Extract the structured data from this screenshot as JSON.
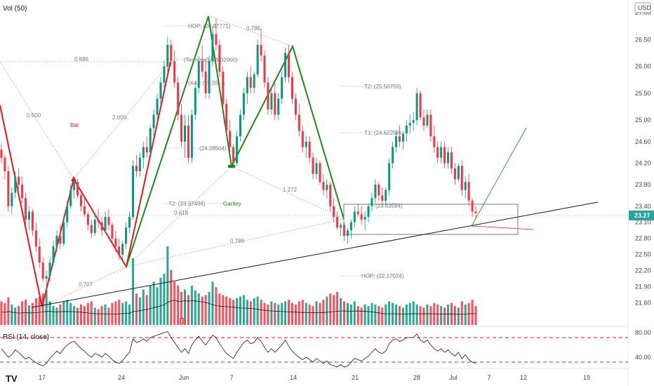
{
  "chart_data": {
    "type": "line",
    "indicators": {
      "volume": "Vol (50)",
      "rsi": "RSI (14, close)"
    },
    "currency": "USD",
    "last_price": "23.27",
    "x_ticks": [
      "17",
      "24",
      "Jun",
      "7",
      "14",
      "21",
      "28",
      "Jul",
      "7",
      "12",
      "19"
    ],
    "y_ticks": [
      "27.00",
      "26.50",
      "26.00",
      "25.50",
      "25.00",
      "24.60",
      "24.20",
      "23.80",
      "23.40",
      "23.10",
      "22.80",
      "22.50",
      "22.20",
      "21.90",
      "21.60"
    ],
    "rsi_ticks": [
      "80.00",
      "40.00"
    ],
    "ylim": [
      21.45,
      27.05
    ],
    "rsi_levels": {
      "upper": 70,
      "lower": 30
    },
    "candles": [
      [
        24.45,
        24.55,
        24.2,
        24.3
      ],
      [
        24.3,
        24.35,
        23.9,
        24.05
      ],
      [
        24.05,
        24.15,
        23.3,
        23.4
      ],
      [
        23.4,
        23.75,
        23.25,
        23.65
      ],
      [
        23.65,
        24.05,
        23.55,
        23.95
      ],
      [
        23.95,
        24.1,
        23.7,
        23.8
      ],
      [
        23.8,
        23.95,
        23.45,
        23.55
      ],
      [
        23.55,
        23.65,
        23.05,
        23.15
      ],
      [
        23.15,
        23.4,
        22.95,
        23.3
      ],
      [
        23.3,
        23.35,
        22.85,
        22.95
      ],
      [
        22.95,
        23.1,
        22.55,
        22.65
      ],
      [
        22.65,
        22.8,
        22.25,
        22.35
      ],
      [
        22.35,
        22.45,
        22.0,
        22.05
      ],
      [
        22.05,
        22.2,
        21.8,
        22.1
      ],
      [
        22.1,
        22.45,
        22.0,
        22.35
      ],
      [
        22.35,
        22.75,
        22.3,
        22.65
      ],
      [
        22.65,
        22.95,
        22.55,
        22.85
      ],
      [
        22.85,
        23.05,
        22.6,
        22.7
      ],
      [
        22.7,
        23.2,
        22.65,
        23.1
      ],
      [
        23.1,
        23.5,
        23.0,
        23.4
      ],
      [
        23.4,
        23.8,
        23.35,
        23.7
      ],
      [
        23.7,
        23.95,
        23.55,
        23.85
      ],
      [
        23.85,
        23.9,
        23.55,
        23.6
      ],
      [
        23.6,
        23.65,
        23.3,
        23.4
      ],
      [
        23.4,
        23.55,
        23.2,
        23.25
      ],
      [
        23.25,
        23.3,
        22.95,
        23.05
      ],
      [
        23.05,
        23.15,
        22.8,
        22.9
      ],
      [
        22.9,
        23.25,
        22.85,
        23.15
      ],
      [
        23.15,
        23.35,
        23.0,
        23.1
      ],
      [
        23.1,
        23.2,
        22.85,
        22.95
      ],
      [
        22.95,
        23.3,
        22.9,
        23.2
      ],
      [
        23.2,
        23.35,
        22.95,
        23.05
      ],
      [
        23.05,
        23.1,
        22.7,
        22.8
      ],
      [
        22.8,
        22.95,
        22.55,
        22.65
      ],
      [
        22.65,
        22.8,
        22.4,
        22.5
      ],
      [
        22.5,
        22.75,
        22.4,
        22.7
      ],
      [
        22.7,
        23.1,
        22.6,
        23.0
      ],
      [
        23.0,
        23.3,
        22.9,
        23.2
      ],
      [
        23.2,
        24.25,
        23.15,
        24.15
      ],
      [
        24.15,
        24.35,
        23.95,
        24.05
      ],
      [
        24.05,
        24.4,
        23.95,
        24.3
      ],
      [
        24.3,
        24.6,
        24.1,
        24.5
      ],
      [
        24.5,
        24.7,
        24.3,
        24.4
      ],
      [
        24.4,
        24.9,
        24.35,
        24.85
      ],
      [
        24.85,
        25.2,
        24.7,
        25.1
      ],
      [
        25.1,
        25.5,
        24.95,
        25.4
      ],
      [
        25.4,
        25.8,
        25.3,
        25.7
      ],
      [
        25.7,
        26.1,
        25.6,
        26.0
      ],
      [
        26.0,
        26.55,
        25.9,
        26.4
      ],
      [
        26.4,
        26.5,
        26.0,
        26.1
      ],
      [
        26.1,
        26.3,
        25.6,
        25.7
      ],
      [
        25.7,
        25.8,
        25.0,
        25.1
      ],
      [
        25.1,
        25.3,
        24.5,
        24.6
      ],
      [
        24.6,
        25.1,
        24.3,
        24.9
      ],
      [
        24.9,
        25.1,
        24.2,
        24.3
      ],
      [
        24.3,
        25.2,
        24.2,
        25.1
      ],
      [
        25.1,
        25.7,
        25.0,
        25.6
      ],
      [
        25.6,
        26.2,
        25.5,
        26.1
      ],
      [
        26.1,
        26.4,
        25.8,
        25.9
      ],
      [
        25.9,
        26.1,
        25.4,
        25.5
      ],
      [
        25.5,
        26.2,
        25.4,
        26.1
      ],
      [
        26.1,
        26.75,
        26.0,
        26.6
      ],
      [
        26.6,
        26.9,
        26.3,
        26.4
      ],
      [
        26.4,
        26.5,
        25.8,
        25.9
      ],
      [
        25.9,
        26.0,
        25.2,
        25.3
      ],
      [
        25.3,
        25.4,
        24.7,
        24.8
      ],
      [
        24.8,
        25.0,
        24.4,
        24.5
      ],
      [
        24.5,
        24.55,
        24.1,
        24.2
      ],
      [
        24.2,
        24.8,
        24.15,
        24.7
      ],
      [
        24.7,
        25.2,
        24.6,
        25.1
      ],
      [
        25.1,
        25.6,
        25.0,
        25.5
      ],
      [
        25.5,
        25.9,
        25.3,
        25.8
      ],
      [
        25.8,
        26.0,
        25.5,
        25.6
      ],
      [
        25.6,
        25.9,
        25.5,
        25.85
      ],
      [
        25.85,
        26.5,
        25.8,
        26.4
      ],
      [
        26.4,
        26.7,
        26.1,
        26.2
      ],
      [
        26.2,
        26.3,
        25.6,
        25.7
      ],
      [
        25.7,
        25.8,
        25.1,
        25.2
      ],
      [
        25.2,
        25.6,
        25.1,
        25.5
      ],
      [
        25.5,
        25.7,
        25.0,
        25.1
      ],
      [
        25.1,
        25.5,
        25.0,
        25.4
      ],
      [
        25.4,
        25.9,
        25.3,
        25.8
      ],
      [
        25.8,
        26.35,
        25.7,
        26.25
      ],
      [
        26.25,
        26.4,
        25.7,
        25.8
      ],
      [
        25.8,
        25.9,
        25.3,
        25.4
      ],
      [
        25.4,
        25.5,
        25.0,
        25.1
      ],
      [
        25.1,
        25.3,
        24.7,
        24.8
      ],
      [
        24.8,
        24.9,
        24.4,
        24.5
      ],
      [
        24.5,
        24.7,
        24.3,
        24.6
      ],
      [
        24.6,
        24.7,
        24.2,
        24.3
      ],
      [
        24.3,
        24.4,
        23.9,
        24.0
      ],
      [
        24.0,
        24.3,
        23.9,
        24.2
      ],
      [
        24.2,
        24.25,
        23.8,
        23.85
      ],
      [
        23.85,
        24.0,
        23.6,
        23.7
      ],
      [
        23.7,
        23.9,
        23.55,
        23.8
      ],
      [
        23.8,
        23.85,
        23.3,
        23.4
      ],
      [
        23.4,
        23.55,
        23.1,
        23.2
      ],
      [
        23.2,
        23.3,
        22.95,
        23.0
      ],
      [
        23.0,
        23.1,
        22.85,
        23.05
      ],
      [
        23.05,
        23.1,
        22.75,
        22.85
      ],
      [
        22.85,
        23.0,
        22.7,
        22.95
      ],
      [
        22.95,
        23.15,
        22.8,
        23.1
      ],
      [
        23.1,
        23.4,
        23.0,
        23.3
      ],
      [
        23.3,
        23.45,
        23.2,
        23.25
      ],
      [
        23.25,
        23.4,
        23.05,
        23.15
      ],
      [
        23.15,
        23.3,
        22.95,
        23.2
      ],
      [
        23.2,
        23.45,
        23.1,
        23.4
      ],
      [
        23.4,
        23.65,
        23.3,
        23.55
      ],
      [
        23.55,
        23.9,
        23.45,
        23.8
      ],
      [
        23.8,
        23.85,
        23.5,
        23.6
      ],
      [
        23.6,
        23.75,
        23.4,
        23.5
      ],
      [
        23.5,
        23.75,
        23.4,
        23.7
      ],
      [
        23.7,
        24.3,
        23.6,
        24.2
      ],
      [
        24.2,
        24.6,
        24.1,
        24.5
      ],
      [
        24.5,
        24.8,
        24.4,
        24.7
      ],
      [
        24.7,
        24.9,
        24.5,
        24.6
      ],
      [
        24.6,
        24.8,
        24.45,
        24.75
      ],
      [
        24.75,
        25.0,
        24.6,
        24.9
      ],
      [
        24.9,
        25.1,
        24.75,
        24.95
      ],
      [
        24.95,
        25.15,
        24.8,
        25.0
      ],
      [
        25.0,
        25.6,
        24.9,
        25.5
      ],
      [
        25.5,
        25.55,
        25.0,
        25.05
      ],
      [
        25.05,
        25.2,
        24.8,
        24.9
      ],
      [
        24.9,
        25.2,
        24.85,
        25.1
      ],
      [
        25.1,
        25.2,
        24.6,
        24.7
      ],
      [
        24.7,
        24.9,
        24.4,
        24.5
      ],
      [
        24.5,
        24.6,
        24.2,
        24.3
      ],
      [
        24.3,
        24.6,
        24.2,
        24.5
      ],
      [
        24.5,
        24.6,
        24.1,
        24.2
      ],
      [
        24.2,
        24.5,
        24.1,
        24.4
      ],
      [
        24.4,
        24.5,
        24.0,
        24.1
      ],
      [
        24.1,
        24.2,
        23.8,
        23.9
      ],
      [
        23.9,
        24.2,
        23.85,
        24.15
      ],
      [
        24.15,
        24.25,
        23.6,
        23.7
      ],
      [
        23.7,
        23.95,
        23.55,
        23.85
      ],
      [
        23.85,
        24.0,
        23.4,
        23.5
      ],
      [
        23.5,
        23.55,
        23.2,
        23.3
      ],
      [
        23.3,
        23.4,
        23.15,
        23.27
      ]
    ],
    "volume": [
      0.3,
      0.28,
      0.35,
      0.26,
      0.22,
      0.24,
      0.3,
      0.32,
      0.25,
      0.28,
      0.34,
      0.36,
      0.4,
      0.45,
      0.3,
      0.24,
      0.22,
      0.26,
      0.3,
      0.32,
      0.28,
      0.24,
      0.22,
      0.26,
      0.24,
      0.28,
      0.3,
      0.22,
      0.2,
      0.24,
      0.26,
      0.22,
      0.28,
      0.3,
      0.32,
      0.28,
      0.3,
      0.26,
      0.85,
      0.4,
      0.35,
      0.45,
      0.38,
      0.5,
      0.55,
      0.48,
      0.6,
      0.65,
      1.0,
      0.7,
      0.55,
      0.5,
      0.42,
      0.45,
      0.38,
      0.5,
      0.44,
      0.4,
      0.36,
      0.38,
      0.42,
      0.55,
      0.48,
      0.4,
      0.38,
      0.36,
      0.34,
      0.32,
      0.34,
      0.36,
      0.38,
      0.32,
      0.3,
      0.34,
      0.36,
      0.32,
      0.28,
      0.26,
      0.3,
      0.28,
      0.26,
      0.28,
      0.3,
      0.32,
      0.28,
      0.26,
      0.3,
      0.32,
      0.28,
      0.26,
      0.24,
      0.3,
      0.28,
      0.32,
      0.36,
      0.4,
      0.38,
      0.42,
      0.34,
      0.3,
      0.28,
      0.26,
      0.3,
      0.24,
      0.22,
      0.26,
      0.24,
      0.28,
      0.26,
      0.24,
      0.22,
      0.26,
      0.3,
      0.28,
      0.26,
      0.24,
      0.22,
      0.26,
      0.28,
      0.3,
      0.26,
      0.24,
      0.22,
      0.26,
      0.24,
      0.28,
      0.26,
      0.24,
      0.22,
      0.26,
      0.28,
      0.24,
      0.22,
      0.3,
      0.26,
      0.28,
      0.32,
      0.24
    ],
    "rsi": [
      52,
      45,
      38,
      42,
      50,
      46,
      40,
      35,
      38,
      33,
      29,
      26,
      24,
      28,
      36,
      42,
      48,
      44,
      52,
      58,
      62,
      64,
      58,
      52,
      48,
      42,
      38,
      44,
      42,
      38,
      44,
      40,
      34,
      30,
      28,
      32,
      40,
      46,
      68,
      62,
      64,
      68,
      64,
      70,
      72,
      74,
      76,
      78,
      80,
      70,
      62,
      54,
      46,
      52,
      44,
      58,
      66,
      72,
      64,
      58,
      66,
      74,
      70,
      60,
      52,
      44,
      40,
      36,
      46,
      54,
      62,
      66,
      60,
      62,
      70,
      64,
      54,
      46,
      52,
      46,
      52,
      58,
      66,
      56,
      48,
      42,
      38,
      34,
      38,
      34,
      30,
      36,
      32,
      28,
      32,
      26,
      24,
      22,
      26,
      22,
      24,
      30,
      36,
      34,
      32,
      36,
      40,
      46,
      52,
      46,
      44,
      48,
      60,
      66,
      68,
      64,
      66,
      70,
      70,
      70,
      76,
      66,
      62,
      66,
      58,
      52,
      48,
      52,
      46,
      50,
      44,
      40,
      46,
      36,
      42,
      34,
      30,
      28
    ],
    "harmonic_labels": {
      "bat": "Bat",
      "gartley": "Gartley",
      "bat_ratios": [
        "0.886",
        "0.500",
        "2.000",
        "0.707"
      ],
      "gartley_ratios": [
        "0.786",
        "1.272",
        "0.618",
        "0.786"
      ],
      "hop_top": "HOP: (26.87771)",
      "terminal": "(Terminal) (26.02000)",
      "xa": "(XA): (25.55...)",
      "low_level": "(24.38504)",
      "t2_top": "T2: (25.50750)",
      "t1_top": "T1: (24.62259)",
      "t2_mid": "T2: (23.37496)",
      "box_level": "(23.33584)",
      "hop_bottom": "HOP: (22.17024)"
    }
  }
}
